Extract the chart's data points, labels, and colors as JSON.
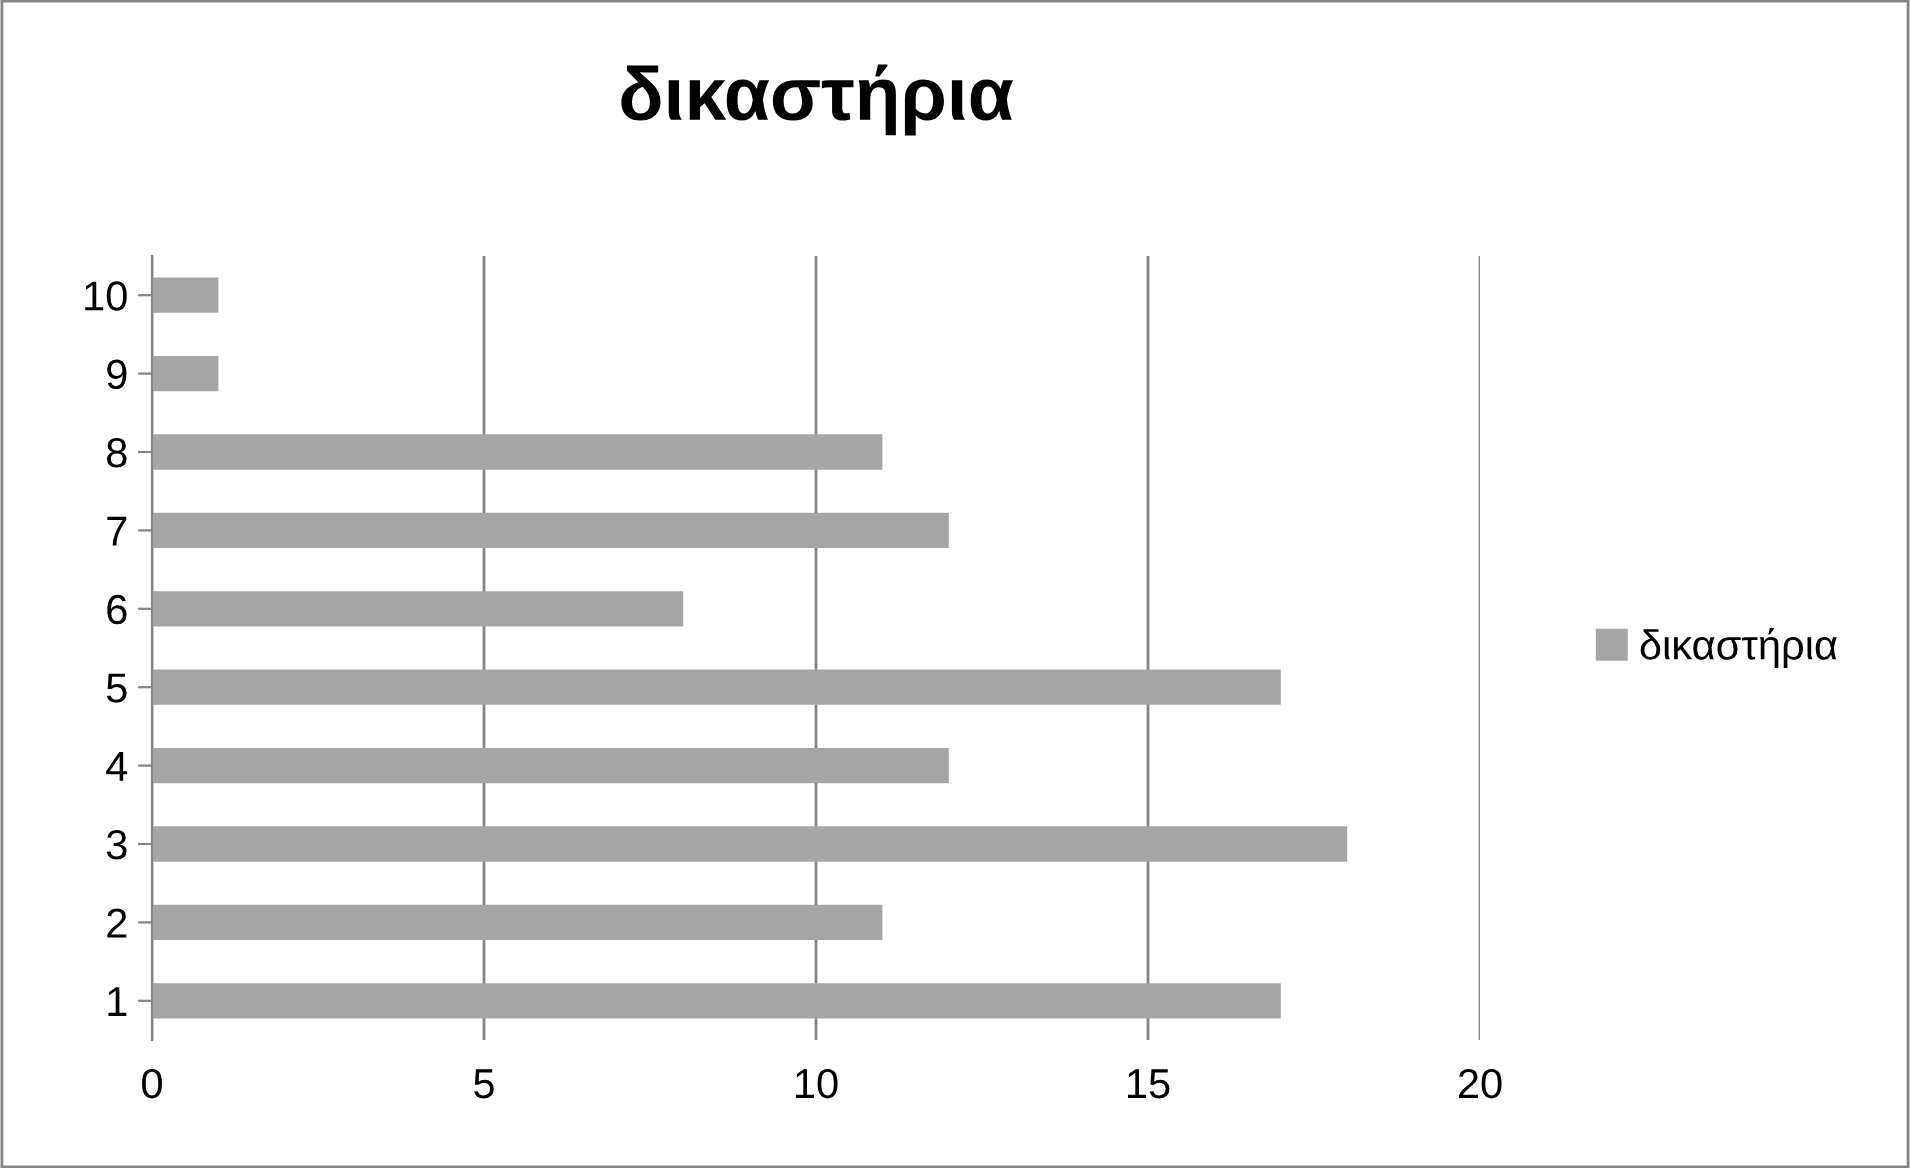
{
  "chart_data": {
    "type": "bar",
    "orientation": "horizontal",
    "title": "δικαστήρια",
    "categories": [
      "10",
      "9",
      "8",
      "7",
      "6",
      "5",
      "4",
      "3",
      "2",
      "1"
    ],
    "series": [
      {
        "name": "δικαστήρια",
        "color": "#a5a5a5",
        "values": [
          1,
          1,
          11,
          12,
          8,
          17,
          12,
          18,
          11,
          17
        ]
      }
    ],
    "xlim": [
      0,
      20
    ],
    "xticks": [
      0,
      5,
      10,
      15,
      20
    ],
    "grid": "x",
    "legend": "right"
  }
}
